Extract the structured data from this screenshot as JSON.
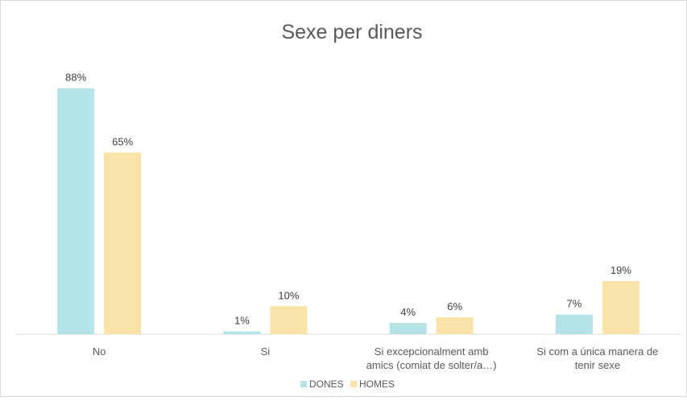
{
  "chart_data": {
    "type": "bar",
    "title": "Sexe per diners",
    "xlabel": "",
    "ylabel": "",
    "ylim": [
      0,
      100
    ],
    "grid": false,
    "legend_position": "bottom",
    "categories": [
      [
        "No"
      ],
      [
        "Si"
      ],
      [
        "Si excepcionalment amb",
        "amics (comiat de solter/a…)"
      ],
      [
        "Si com a única manera de",
        "tenir sexe"
      ]
    ],
    "series": [
      {
        "name": "DONES",
        "color": "#b4e3e8",
        "values": [
          88,
          1,
          4,
          7
        ],
        "labels": [
          "88%",
          "1%",
          "4%",
          "7%"
        ]
      },
      {
        "name": "HOMES",
        "color": "#fae3a8",
        "values": [
          65,
          10,
          6,
          19
        ],
        "labels": [
          "65%",
          "10%",
          "6%",
          "19%"
        ]
      }
    ]
  }
}
